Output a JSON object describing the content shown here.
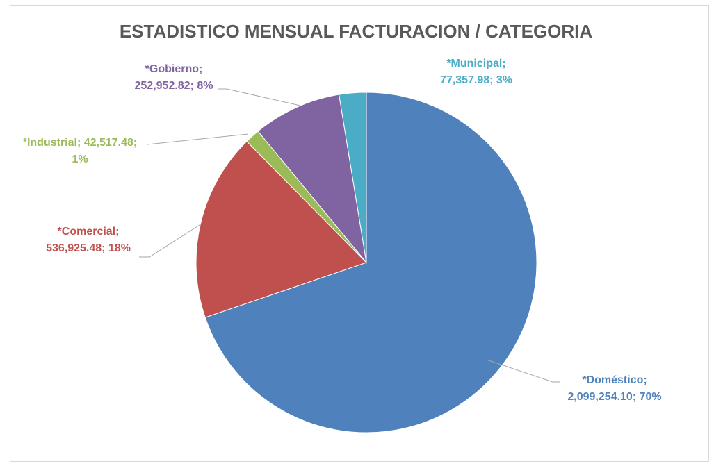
{
  "chart_data": {
    "type": "pie",
    "title": "ESTADISTICO MENSUAL FACTURACION / CATEGORIA",
    "values": [
      2099254.1,
      536925.48,
      42517.48,
      252952.82,
      77357.98
    ],
    "value_labels": [
      [
        "*Doméstico;",
        "2,099,254.10; 70%"
      ],
      [
        "*Comercial;",
        "536,925.48; 18%"
      ],
      [
        "*Industrial; 42,517.48;",
        "1%"
      ],
      [
        "*Gobierno;",
        "252,952.82; 8%"
      ],
      [
        "*Municipal;",
        "77,357.98; 3%"
      ]
    ],
    "colors": [
      "#4f81bd",
      "#c0504d",
      "#9bbb59",
      "#8064a2",
      "#4bacc6"
    ]
  }
}
